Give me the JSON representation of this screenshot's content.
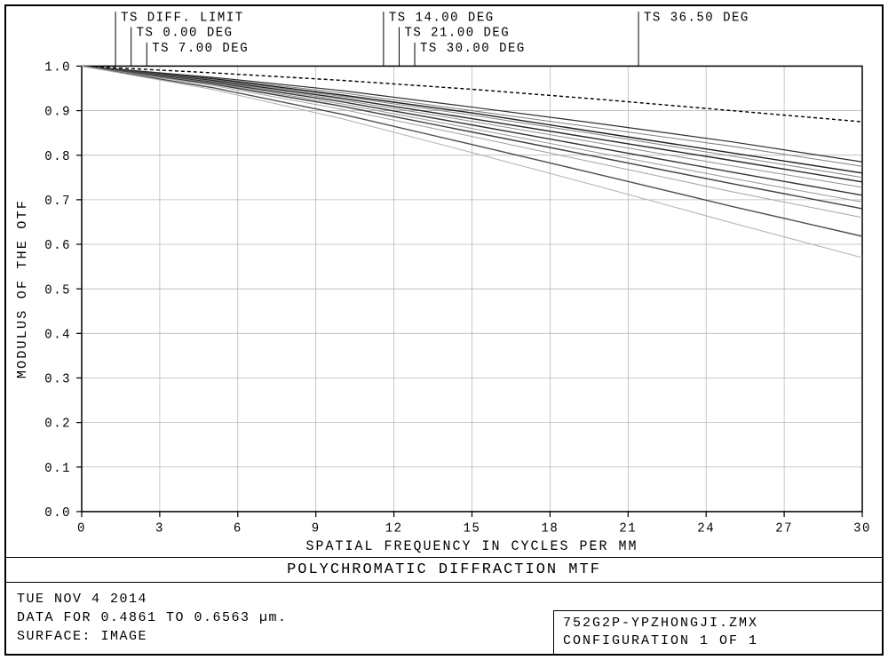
{
  "chart": {
    "type": "line",
    "xlabel": "SPATIAL FREQUENCY IN CYCLES PER MM",
    "ylabel": "MODULUS OF THE OTF",
    "xlim": [
      0,
      30
    ],
    "ylim": [
      0,
      1.0
    ],
    "xticks": [
      0,
      3,
      6,
      9,
      12,
      15,
      18,
      21,
      24,
      27,
      30
    ],
    "yticks": [
      0.0,
      0.1,
      0.2,
      0.3,
      0.4,
      0.5,
      0.6,
      0.7,
      0.8,
      0.9,
      1.0
    ],
    "ytick_labels": [
      "0.0",
      "0.1",
      "0.2",
      "0.3",
      "0.4",
      "0.5",
      "0.6",
      "0.7",
      "0.8",
      "0.9",
      "1.0"
    ],
    "background_color": "#ffffff",
    "grid_color": "#b8b8b8",
    "axis_color": "#000000",
    "label_fontsize": 15,
    "tick_fontsize": 14,
    "legend_entries": [
      {
        "label": "TS DIFF. LIMIT",
        "leader_x": 1.3,
        "label_y_offset": 0
      },
      {
        "label": "TS 0.00 DEG",
        "leader_x": 1.9,
        "label_y_offset": 1
      },
      {
        "label": "TS 7.00 DEG",
        "leader_x": 2.5,
        "label_y_offset": 2
      },
      {
        "label": "TS 14.00 DEG",
        "leader_x": 11.6,
        "label_y_offset": 0
      },
      {
        "label": "TS 21.00 DEG",
        "leader_x": 12.2,
        "label_y_offset": 1
      },
      {
        "label": "TS 30.00 DEG",
        "leader_x": 12.8,
        "label_y_offset": 2
      },
      {
        "label": "TS 36.50 DEG",
        "leader_x": 21.4,
        "label_y_offset": 0
      }
    ],
    "series": [
      {
        "color": "#000000",
        "width": 1.4,
        "dash": "4,3",
        "pts": [
          [
            0,
            1.0
          ],
          [
            5,
            0.985
          ],
          [
            10,
            0.968
          ],
          [
            15,
            0.948
          ],
          [
            20,
            0.925
          ],
          [
            25,
            0.9
          ],
          [
            30,
            0.875
          ]
        ]
      },
      {
        "color": "#303030",
        "width": 1.2,
        "dash": "",
        "pts": [
          [
            0,
            1.0
          ],
          [
            5,
            0.975
          ],
          [
            10,
            0.945
          ],
          [
            15,
            0.908
          ],
          [
            20,
            0.87
          ],
          [
            25,
            0.83
          ],
          [
            30,
            0.785
          ]
        ]
      },
      {
        "color": "#808080",
        "width": 1.0,
        "dash": "",
        "pts": [
          [
            0,
            1.0
          ],
          [
            5,
            0.973
          ],
          [
            10,
            0.94
          ],
          [
            15,
            0.9
          ],
          [
            20,
            0.86
          ],
          [
            25,
            0.82
          ],
          [
            30,
            0.775
          ]
        ]
      },
      {
        "color": "#202020",
        "width": 1.4,
        "dash": "",
        "pts": [
          [
            0,
            1.0
          ],
          [
            5,
            0.972
          ],
          [
            10,
            0.935
          ],
          [
            15,
            0.895
          ],
          [
            20,
            0.85
          ],
          [
            25,
            0.805
          ],
          [
            30,
            0.76
          ]
        ]
      },
      {
        "color": "#888888",
        "width": 1.0,
        "dash": "",
        "pts": [
          [
            0,
            1.0
          ],
          [
            5,
            0.97
          ],
          [
            10,
            0.932
          ],
          [
            15,
            0.89
          ],
          [
            20,
            0.845
          ],
          [
            25,
            0.798
          ],
          [
            30,
            0.75
          ]
        ]
      },
      {
        "color": "#282828",
        "width": 1.4,
        "dash": "",
        "pts": [
          [
            0,
            1.0
          ],
          [
            5,
            0.968
          ],
          [
            10,
            0.928
          ],
          [
            15,
            0.882
          ],
          [
            20,
            0.835
          ],
          [
            25,
            0.788
          ],
          [
            30,
            0.74
          ]
        ]
      },
      {
        "color": "#909090",
        "width": 1.0,
        "dash": "",
        "pts": [
          [
            0,
            1.0
          ],
          [
            5,
            0.966
          ],
          [
            10,
            0.924
          ],
          [
            15,
            0.876
          ],
          [
            20,
            0.826
          ],
          [
            25,
            0.776
          ],
          [
            30,
            0.728
          ]
        ]
      },
      {
        "color": "#353535",
        "width": 1.4,
        "dash": "",
        "pts": [
          [
            0,
            1.0
          ],
          [
            5,
            0.964
          ],
          [
            10,
            0.92
          ],
          [
            15,
            0.868
          ],
          [
            20,
            0.815
          ],
          [
            25,
            0.762
          ],
          [
            30,
            0.71
          ]
        ]
      },
      {
        "color": "#9a9a9a",
        "width": 1.0,
        "dash": "",
        "pts": [
          [
            0,
            1.0
          ],
          [
            5,
            0.962
          ],
          [
            10,
            0.915
          ],
          [
            15,
            0.86
          ],
          [
            20,
            0.804
          ],
          [
            25,
            0.748
          ],
          [
            30,
            0.695
          ]
        ]
      },
      {
        "color": "#404040",
        "width": 1.4,
        "dash": "",
        "pts": [
          [
            0,
            1.0
          ],
          [
            5,
            0.96
          ],
          [
            10,
            0.91
          ],
          [
            15,
            0.852
          ],
          [
            20,
            0.794
          ],
          [
            25,
            0.736
          ],
          [
            30,
            0.68
          ]
        ]
      },
      {
        "color": "#a5a5a5",
        "width": 1.0,
        "dash": "",
        "pts": [
          [
            0,
            1.0
          ],
          [
            5,
            0.957
          ],
          [
            10,
            0.903
          ],
          [
            15,
            0.842
          ],
          [
            20,
            0.78
          ],
          [
            25,
            0.718
          ],
          [
            30,
            0.66
          ]
        ]
      },
      {
        "color": "#505050",
        "width": 1.4,
        "dash": "",
        "pts": [
          [
            0,
            1.0
          ],
          [
            5,
            0.952
          ],
          [
            10,
            0.892
          ],
          [
            15,
            0.824
          ],
          [
            20,
            0.755
          ],
          [
            25,
            0.685
          ],
          [
            30,
            0.618
          ]
        ]
      },
      {
        "color": "#b0b0b0",
        "width": 1.0,
        "dash": "",
        "pts": [
          [
            0,
            1.0
          ],
          [
            5,
            0.948
          ],
          [
            10,
            0.882
          ],
          [
            15,
            0.806
          ],
          [
            20,
            0.728
          ],
          [
            25,
            0.648
          ],
          [
            30,
            0.57
          ]
        ]
      }
    ]
  },
  "title": "POLYCHROMATIC DIFFRACTION MTF",
  "footer": {
    "date_line": "TUE NOV 4 2014",
    "data_line": "DATA FOR 0.4861 TO 0.6563 µm.",
    "surface_line": "SURFACE: IMAGE",
    "filename": "752G2P-YPZHONGJI.ZMX",
    "config_line": "CONFIGURATION 1 OF 1"
  }
}
